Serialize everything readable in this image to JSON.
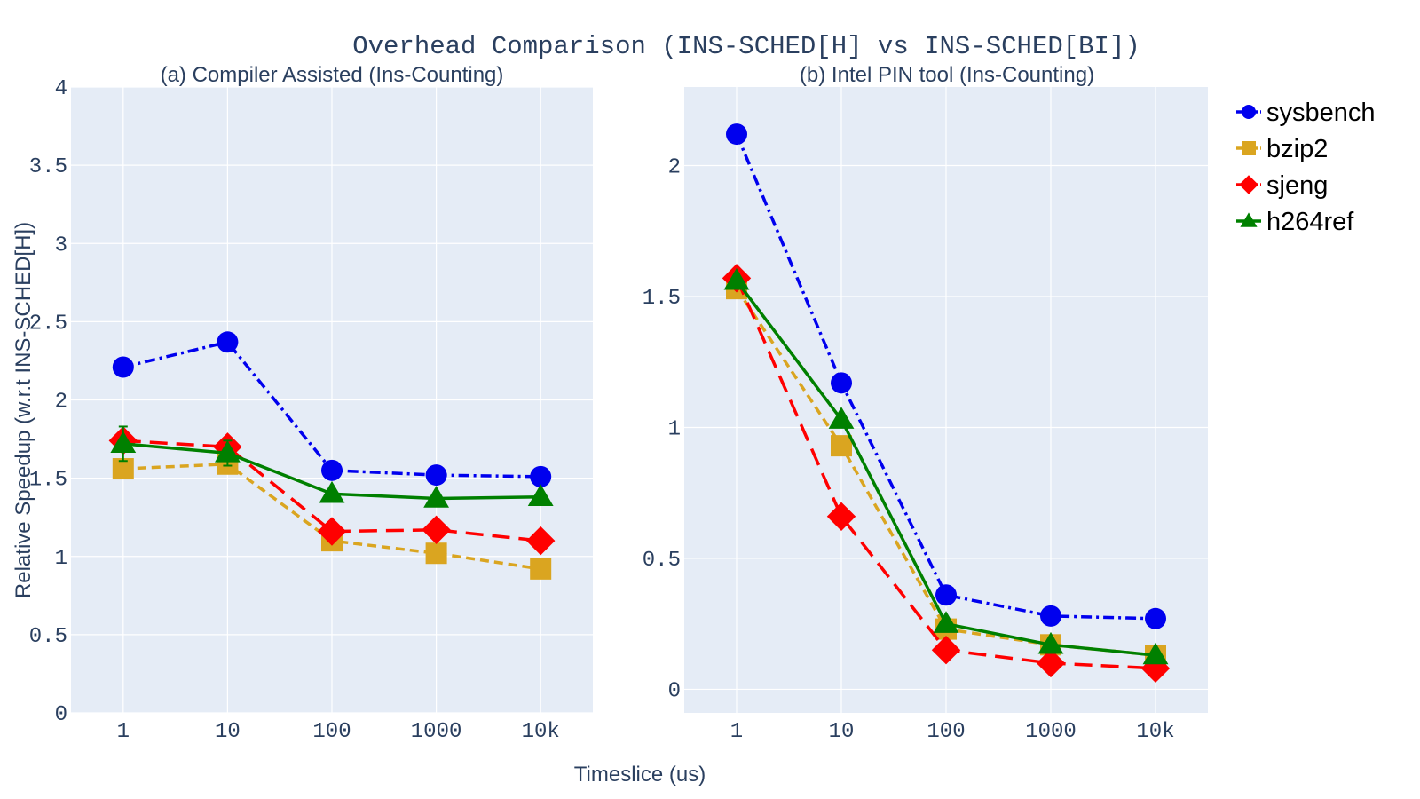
{
  "figure": {
    "title": "Overhead Comparison (INS-SCHED[H] vs INS-SCHED[BI])",
    "xlabel": "Timeslice (us)",
    "ylabel": "Relative Speedup (w.r.t INS-SCHED[H])",
    "legend": [
      "sysbench",
      "bzip2",
      "sjeng",
      "h264ref"
    ],
    "colors": {
      "sysbench": "#0000ee",
      "bzip2": "#daa520",
      "sjeng": "#ff0000",
      "h264ref": "#008000",
      "plot_bg": "#e5ecf6",
      "grid": "#ffffff",
      "text": "#2a3f5f"
    }
  },
  "chart_data": [
    {
      "type": "line",
      "title": "(a) Compiler Assisted (Ins-Counting)",
      "xlabel": "Timeslice (us)",
      "ylabel": "Relative Speedup (w.r.t INS-SCHED[H])",
      "categories": [
        "1",
        "10",
        "100",
        "1000",
        "10k"
      ],
      "ylim": [
        0,
        4
      ],
      "yticks": [
        "0",
        "0.5",
        "1",
        "1.5",
        "2",
        "2.5",
        "3",
        "3.5",
        "4"
      ],
      "grid": true,
      "series": [
        {
          "name": "sysbench",
          "values": [
            2.21,
            2.37,
            1.55,
            1.52,
            1.51
          ],
          "marker": "circle",
          "dash": "dashdot"
        },
        {
          "name": "bzip2",
          "values": [
            1.56,
            1.59,
            1.1,
            1.02,
            0.92
          ],
          "marker": "square",
          "dash": "dash"
        },
        {
          "name": "sjeng",
          "values": [
            1.74,
            1.7,
            1.16,
            1.17,
            1.1
          ],
          "marker": "diamond",
          "dash": "longdash"
        },
        {
          "name": "h264ref",
          "values": [
            1.72,
            1.66,
            1.4,
            1.37,
            1.38
          ],
          "marker": "triangle",
          "dash": "solid",
          "error": [
            0.11,
            0.08,
            0,
            0,
            0
          ]
        }
      ]
    },
    {
      "type": "line",
      "title": "(b) Intel PIN tool (Ins-Counting)",
      "xlabel": "Timeslice (us)",
      "categories": [
        "1",
        "10",
        "100",
        "1000",
        "10k"
      ],
      "ylim": [
        -0.09,
        2.3
      ],
      "yticks": [
        "0",
        "0.5",
        "1",
        "1.5",
        "2"
      ],
      "grid": true,
      "legend_position": "top-right outside",
      "series": [
        {
          "name": "sysbench",
          "values": [
            2.12,
            1.17,
            0.36,
            0.28,
            0.27
          ],
          "marker": "circle",
          "dash": "dashdot"
        },
        {
          "name": "bzip2",
          "values": [
            1.53,
            0.93,
            0.23,
            0.17,
            0.13
          ],
          "marker": "square",
          "dash": "dash"
        },
        {
          "name": "sjeng",
          "values": [
            1.57,
            0.66,
            0.15,
            0.1,
            0.08
          ],
          "marker": "diamond",
          "dash": "longdash"
        },
        {
          "name": "h264ref",
          "values": [
            1.56,
            1.03,
            0.25,
            0.17,
            0.13
          ],
          "marker": "triangle",
          "dash": "solid"
        }
      ]
    }
  ]
}
